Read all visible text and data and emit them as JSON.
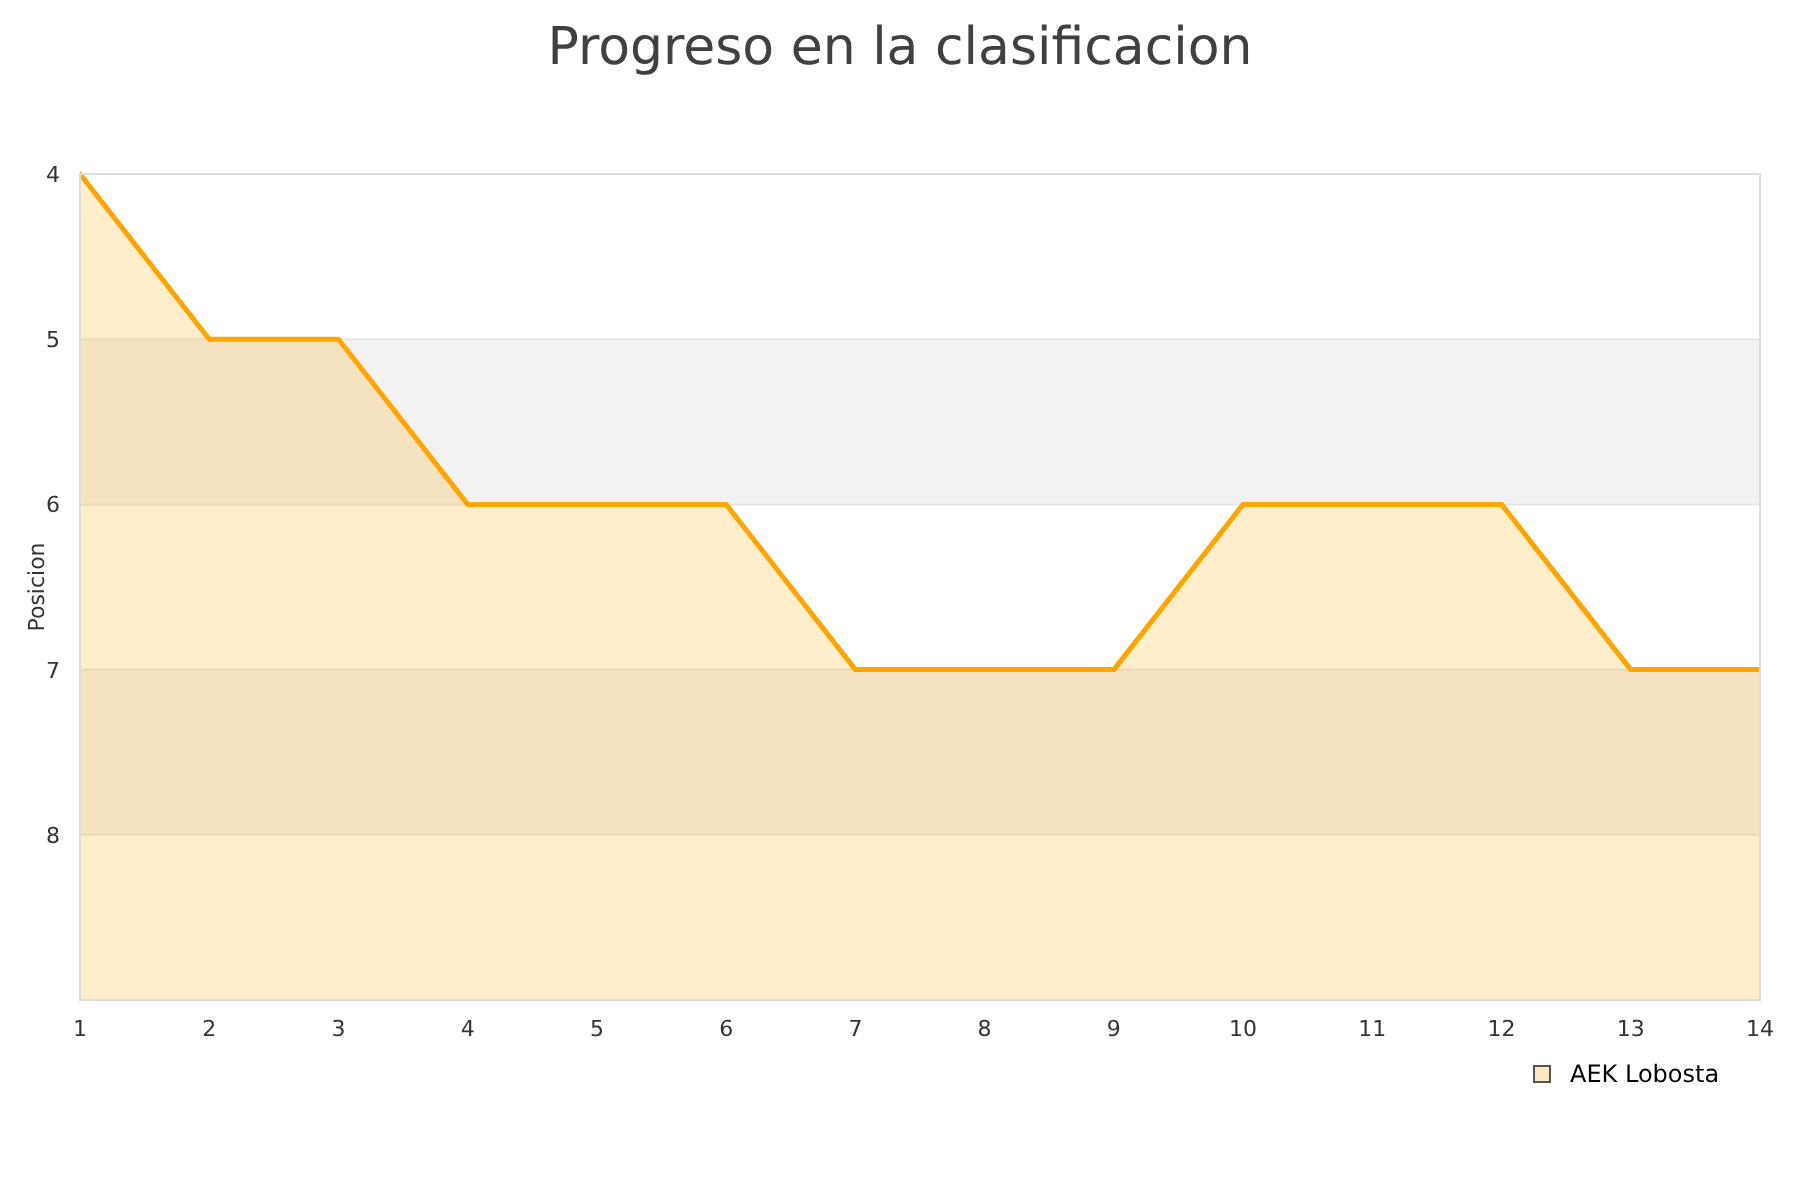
{
  "chart_data": {
    "type": "area",
    "title": "Progreso en la clasificacion",
    "ylabel": "Posicion",
    "x": [
      1,
      2,
      3,
      4,
      5,
      6,
      7,
      8,
      9,
      10,
      11,
      12,
      13,
      14
    ],
    "series": [
      {
        "name": "AEK Lobosta",
        "color": "#ffa500",
        "values": [
          4,
          5,
          5,
          6,
          6,
          6,
          7,
          7,
          7,
          6,
          6,
          6,
          7,
          7
        ]
      }
    ],
    "xlim": [
      1,
      14
    ],
    "xticks": [
      1,
      2,
      3,
      4,
      5,
      6,
      7,
      8,
      9,
      10,
      11,
      12,
      13,
      14
    ],
    "ylim": [
      9,
      4
    ],
    "yticks": [
      4,
      5,
      6,
      7,
      8
    ],
    "bands": [
      {
        "axis": "y",
        "from": 5,
        "to": 6,
        "color": "#f2f2f2"
      },
      {
        "axis": "y",
        "from": 7,
        "to": 8,
        "color": "#f2f2f2"
      }
    ],
    "grid": "y",
    "legend": "bottom right"
  }
}
